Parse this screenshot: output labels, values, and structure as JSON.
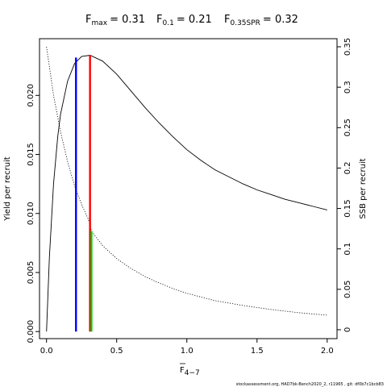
{
  "chart_data": {
    "type": "line",
    "title": {
      "fmax": {
        "main": "F",
        "sub": "max",
        "value": "= 0.31"
      },
      "f01": {
        "main": "F",
        "sub": "0.1",
        "value": "= 0.21"
      },
      "fspr": {
        "main": "F",
        "sub": "0.35SPR",
        "value": "= 0.32"
      }
    },
    "xlabel": {
      "main": "F",
      "sub": "4−7"
    },
    "ylabel_left": "Yield per recruit",
    "ylabel_right": "SSB per recruit",
    "xlim": [
      -0.05,
      2.07
    ],
    "ylim_left": [
      -0.0006,
      0.0248
    ],
    "ylim_right": [
      -0.011,
      0.36
    ],
    "x_ticks": [
      0,
      0.5,
      1,
      1.5,
      2
    ],
    "x_tick_labels": [
      "0.0",
      "0.5",
      "1.0",
      "1.5",
      "2.0"
    ],
    "y_left_ticks": [
      0,
      0.005,
      0.01,
      0.015,
      0.02
    ],
    "y_left_tick_labels": [
      "0.000",
      "0.005",
      "0.010",
      "0.015",
      "0.020"
    ],
    "y_right_ticks": [
      0,
      0.05,
      0.1,
      0.15,
      0.2,
      0.25,
      0.3,
      0.35
    ],
    "y_right_tick_labels": [
      "0",
      "0.05",
      "0.1",
      "0.15",
      "0.2",
      "0.25",
      "0.3",
      "0.35"
    ],
    "series": [
      {
        "axis": "left",
        "style": "solid",
        "x": [
          0,
          0.02,
          0.05,
          0.08,
          0.1,
          0.15,
          0.2,
          0.25,
          0.31,
          0.4,
          0.5,
          0.6,
          0.7,
          0.8,
          0.9,
          1.0,
          1.1,
          1.2,
          1.3,
          1.4,
          1.5,
          1.6,
          1.7,
          1.8,
          1.9,
          2.0
        ],
        "values": [
          0,
          0.0062,
          0.0125,
          0.0165,
          0.0184,
          0.0212,
          0.0227,
          0.0233,
          0.0234,
          0.0229,
          0.0218,
          0.0204,
          0.019,
          0.0177,
          0.0165,
          0.0154,
          0.0145,
          0.0137,
          0.0131,
          0.0125,
          0.012,
          0.0116,
          0.0112,
          0.0109,
          0.0106,
          0.0103
        ]
      },
      {
        "axis": "right",
        "style": "dotted",
        "x": [
          0,
          0.05,
          0.1,
          0.15,
          0.2,
          0.25,
          0.3,
          0.32,
          0.4,
          0.5,
          0.6,
          0.7,
          0.8,
          0.9,
          1.0,
          1.2,
          1.4,
          1.6,
          1.8,
          2.0
        ],
        "values": [
          0.35,
          0.29,
          0.245,
          0.208,
          0.178,
          0.155,
          0.136,
          0.122,
          0.104,
          0.088,
          0.076,
          0.066,
          0.058,
          0.051,
          0.045,
          0.036,
          0.03,
          0.025,
          0.021,
          0.018
        ]
      }
    ],
    "reference_lines": [
      {
        "x": 0.21,
        "y_left": 0.0232,
        "color": "#0000ff"
      },
      {
        "x": 0.31,
        "y_left": 0.0234,
        "color": "#ff0000"
      },
      {
        "x": 0.32,
        "y_right": 0.122,
        "color": "#00cc00"
      }
    ]
  },
  "footer": "stockassessment.org, HAD7bk-Bench2020_2, r11965 , git: df0b7c1bcb83"
}
